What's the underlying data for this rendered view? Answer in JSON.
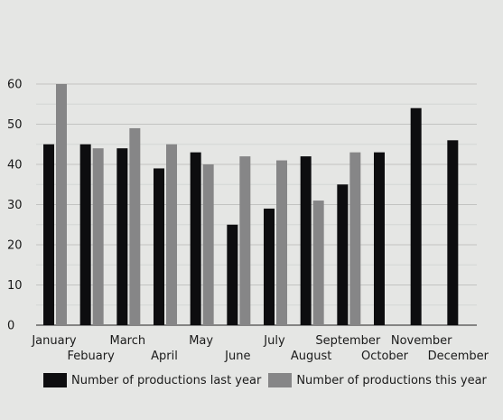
{
  "chart_data": {
    "type": "bar",
    "categories": [
      "January",
      "Febuary",
      "March",
      "April",
      "May",
      "June",
      "July",
      "August",
      "September",
      "October",
      "November",
      "December"
    ],
    "series": [
      {
        "name": "Number of productions last year",
        "color": "#0d0d0f",
        "values": [
          45,
          45,
          44,
          39,
          43,
          25,
          29,
          42,
          35,
          43,
          54,
          46
        ]
      },
      {
        "name": "Number of productions this year",
        "color": "#868687",
        "values": [
          60,
          44,
          49,
          45,
          40,
          42,
          41,
          31,
          43,
          null,
          null,
          null
        ]
      }
    ],
    "ylim": [
      0,
      60
    ],
    "yticks": [
      0,
      10,
      20,
      30,
      40,
      50,
      60
    ],
    "grid": true,
    "legend_position": "bottom-left"
  }
}
